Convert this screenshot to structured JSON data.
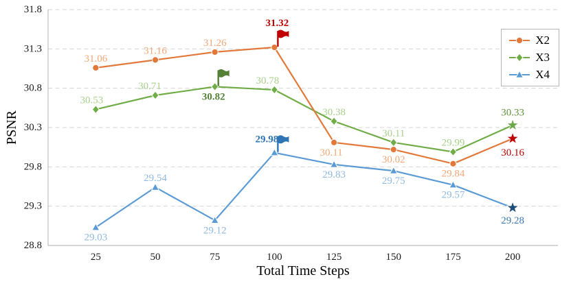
{
  "chart_data": {
    "type": "line",
    "title": "",
    "xlabel": "Total Time Steps",
    "ylabel": "PSNR",
    "xlim": [
      5,
      219
    ],
    "ylim": [
      28.8,
      31.8
    ],
    "x_ticks": [
      25,
      50,
      75,
      100,
      125,
      150,
      175,
      200
    ],
    "y_ticks": [
      "28.8",
      "29.3",
      "29.8",
      "30.3",
      "30.8",
      "31.3",
      "31.8"
    ],
    "grid": "horizontal-dashed",
    "legend_position": "top-right",
    "categories": [
      25,
      50,
      75,
      100,
      125,
      150,
      175,
      200
    ],
    "series": [
      {
        "name": "X2",
        "color": "#E2793B",
        "label_color": "#F2A876",
        "marker": "circle",
        "values": [
          31.06,
          31.16,
          31.26,
          31.32,
          30.11,
          30.02,
          29.84,
          30.16
        ],
        "points": [
          {
            "x": 25,
            "y": 31.06,
            "label": "31.06",
            "pos": "above"
          },
          {
            "x": 50,
            "y": 31.16,
            "label": "31.16",
            "pos": "above"
          },
          {
            "x": 75,
            "y": 31.26,
            "label": "31.26",
            "pos": "above"
          },
          {
            "x": 100,
            "y": 31.32,
            "label": "31.32",
            "pos": "above",
            "bold": true,
            "label_color": "#C00000",
            "flag": "#C00000",
            "dx": 4,
            "dy": -22
          },
          {
            "x": 125,
            "y": 30.11,
            "label": "30.11",
            "pos": "below",
            "dx": -4
          },
          {
            "x": 150,
            "y": 30.02,
            "label": "30.02",
            "pos": "below"
          },
          {
            "x": 175,
            "y": 29.84,
            "label": "29.84",
            "pos": "below"
          },
          {
            "x": 200,
            "y": 30.16,
            "label": "30.16",
            "pos": "below",
            "label_color": "#C00000",
            "marker": "star",
            "marker_color": "#C00000",
            "dy": 6
          }
        ]
      },
      {
        "name": "X3",
        "color": "#70AD47",
        "label_color": "#A9D18E",
        "marker": "diamond",
        "values": [
          30.53,
          30.71,
          30.82,
          30.78,
          30.38,
          30.11,
          29.99,
          30.33
        ],
        "points": [
          {
            "x": 25,
            "y": 30.53,
            "label": "30.53",
            "pos": "above",
            "dx": -6
          },
          {
            "x": 50,
            "y": 30.71,
            "label": "30.71",
            "pos": "above",
            "dx": -8
          },
          {
            "x": 75,
            "y": 30.82,
            "label": "30.82",
            "pos": "below",
            "bold": true,
            "label_color": "#538135",
            "flag": "#538135",
            "dx": -2
          },
          {
            "x": 100,
            "y": 30.78,
            "label": "30.78",
            "pos": "above",
            "dx": -10
          },
          {
            "x": 125,
            "y": 30.38,
            "label": "30.38",
            "pos": "above"
          },
          {
            "x": 150,
            "y": 30.11,
            "label": "30.11",
            "pos": "above"
          },
          {
            "x": 175,
            "y": 29.99,
            "label": "29.99",
            "pos": "above"
          },
          {
            "x": 200,
            "y": 30.33,
            "label": "30.33",
            "pos": "above",
            "label_color": "#5E9138",
            "marker": "star",
            "marker_color": "#6FA84C",
            "dy": -5
          }
        ]
      },
      {
        "name": "X4",
        "color": "#5B9BD5",
        "label_color": "#8FB9E0",
        "marker": "triangle",
        "values": [
          29.03,
          29.54,
          29.12,
          29.98,
          29.83,
          29.75,
          29.57,
          29.28
        ],
        "points": [
          {
            "x": 25,
            "y": 29.03,
            "label": "29.03",
            "pos": "below"
          },
          {
            "x": 50,
            "y": 29.54,
            "label": "29.54",
            "pos": "above"
          },
          {
            "x": 75,
            "y": 29.12,
            "label": "29.12",
            "pos": "below"
          },
          {
            "x": 100,
            "y": 29.98,
            "label": "29.98",
            "pos": "above",
            "bold": true,
            "label_color": "#2E75B6",
            "flag": "#2E75B6",
            "dx": -11,
            "dy": -6
          },
          {
            "x": 125,
            "y": 29.83,
            "label": "29.83",
            "pos": "below"
          },
          {
            "x": 150,
            "y": 29.75,
            "label": "29.75",
            "pos": "below"
          },
          {
            "x": 175,
            "y": 29.57,
            "label": "29.57",
            "pos": "below"
          },
          {
            "x": 200,
            "y": 29.28,
            "label": "29.28",
            "pos": "below",
            "label_color": "#3D7AB5",
            "marker": "star",
            "marker_color": "#1F4E79",
            "dy": 4
          }
        ]
      }
    ]
  }
}
